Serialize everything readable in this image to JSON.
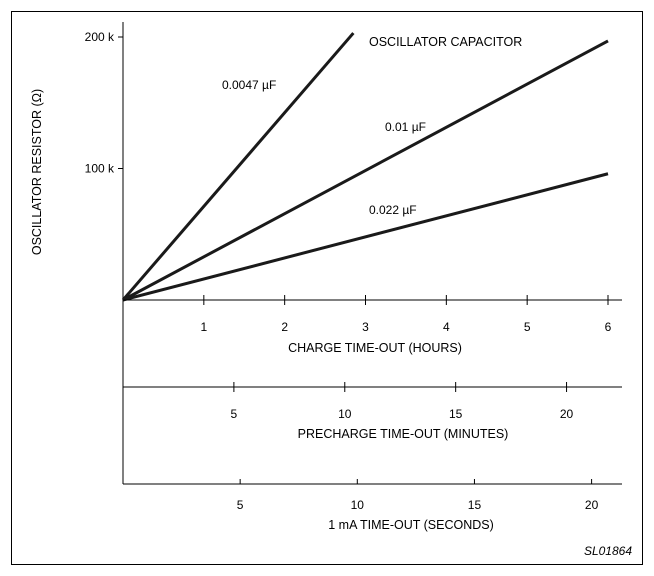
{
  "figure_id": "SL01864",
  "chart_data": {
    "type": "line",
    "title": "",
    "annotation": "OSCILLATOR CAPACITOR",
    "ylabel": "OSCILLATOR RESISTOR (Ω)",
    "ylim": [
      0,
      200000
    ],
    "y_ticks": [
      {
        "value": 100000,
        "label": "100 k"
      },
      {
        "value": 200000,
        "label": "200 k"
      }
    ],
    "axes": [
      {
        "xlabel": "CHARGE TIME-OUT (HOURS)",
        "xlim": [
          0,
          6
        ],
        "ticks": [
          {
            "value": 1,
            "label": "1"
          },
          {
            "value": 2,
            "label": "2"
          },
          {
            "value": 3,
            "label": "3"
          },
          {
            "value": 4,
            "label": "4"
          },
          {
            "value": 5,
            "label": "5"
          },
          {
            "value": 6,
            "label": "6"
          }
        ]
      },
      {
        "xlabel": "PRECHARGE TIME-OUT (MINUTES)",
        "xlim": [
          0,
          22.5
        ],
        "ticks": [
          {
            "value": 5,
            "label": "5"
          },
          {
            "value": 10,
            "label": "10"
          },
          {
            "value": 15,
            "label": "15"
          },
          {
            "value": 20,
            "label": "20"
          }
        ]
      },
      {
        "xlabel": "1 mA TIME-OUT (SECONDS)",
        "xlim": [
          0,
          20.7
        ],
        "ticks": [
          {
            "value": 5,
            "label": "5"
          },
          {
            "value": 10,
            "label": "10"
          },
          {
            "value": 15,
            "label": "15"
          },
          {
            "value": 20,
            "label": "20"
          }
        ]
      }
    ],
    "series": [
      {
        "name": "0.0047 µF",
        "x": [
          0,
          2.85
        ],
        "y": [
          0,
          203000
        ]
      },
      {
        "name": "0.01 µF",
        "x": [
          0,
          6.0
        ],
        "y": [
          0,
          197000
        ]
      },
      {
        "name": "0.022 µF",
        "x": [
          0,
          6.0
        ],
        "y": [
          0,
          96000
        ]
      }
    ]
  }
}
